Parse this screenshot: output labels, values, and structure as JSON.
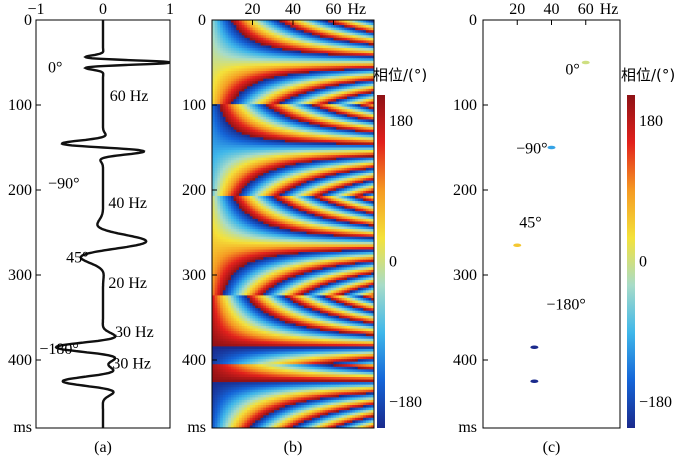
{
  "chart_data": [
    {
      "id": "a",
      "type": "line",
      "title": "",
      "panel_label": "(a)",
      "xlabel": "",
      "ylabel": "ms",
      "xlim": [
        -1,
        1
      ],
      "ylim": [
        480,
        0
      ],
      "x_ticks": [
        "-1",
        "0",
        "1"
      ],
      "y_ticks": [
        "0",
        "100",
        "200",
        "300",
        "400"
      ],
      "y_unit": "ms",
      "wavelets": [
        {
          "center_ms": 50,
          "freq_hz": 60,
          "phase_deg": 0,
          "amp": 1.0
        },
        {
          "center_ms": 150,
          "freq_hz": 40,
          "phase_deg": -90,
          "amp": 0.85
        },
        {
          "center_ms": 265,
          "freq_hz": 20,
          "phase_deg": 45,
          "amp": 0.7
        },
        {
          "center_ms": 385,
          "freq_hz": 30,
          "phase_deg": -180,
          "amp": 0.7
        },
        {
          "center_ms": 425,
          "freq_hz": 30,
          "phase_deg": -180,
          "amp": 0.6
        }
      ],
      "annotations": [
        {
          "text": "0°",
          "t": 62,
          "x": -0.82
        },
        {
          "text": "60 Hz",
          "t": 95,
          "x": 0.1
        },
        {
          "text": "−90°",
          "t": 198,
          "x": -0.82
        },
        {
          "text": "40 Hz",
          "t": 221,
          "x": 0.08
        },
        {
          "text": "45°",
          "t": 285,
          "x": -0.55
        },
        {
          "text": "20 Hz",
          "t": 315,
          "x": 0.08
        },
        {
          "text": "30 Hz",
          "t": 373,
          "x": 0.18
        },
        {
          "text": "−180°",
          "t": 393,
          "x": -0.95
        },
        {
          "text": "30 Hz",
          "t": 410,
          "x": 0.14
        }
      ]
    },
    {
      "id": "b",
      "type": "heatmap",
      "title": "",
      "panel_label": "(b)",
      "x_unit": "Hz",
      "y_unit": "ms",
      "xlim": [
        0,
        80
      ],
      "ylim": [
        480,
        0
      ],
      "x_ticks": [
        "20",
        "40",
        "60"
      ],
      "y_ticks": [
        "0",
        "100",
        "200",
        "300",
        "400"
      ],
      "value_label": "相位/(°)",
      "value_range": [
        -180,
        180
      ],
      "colorbar_ticks": [
        "180",
        "0",
        "−180"
      ]
    },
    {
      "id": "c",
      "type": "scatter",
      "title": "",
      "panel_label": "(c)",
      "x_unit": "Hz",
      "y_unit": "ms",
      "xlim": [
        0,
        80
      ],
      "ylim": [
        480,
        0
      ],
      "x_ticks": [
        "20",
        "40",
        "60"
      ],
      "y_ticks": [
        "0",
        "100",
        "200",
        "300",
        "400"
      ],
      "value_label": "相位/(°)",
      "value_range": [
        -180,
        180
      ],
      "colorbar_ticks": [
        "180",
        "0",
        "−180"
      ],
      "points": [
        {
          "freq_hz": 60,
          "t_ms": 50,
          "phase_deg": 0,
          "label": "0°"
        },
        {
          "freq_hz": 40,
          "t_ms": 150,
          "phase_deg": -90,
          "label": "−90°"
        },
        {
          "freq_hz": 20,
          "t_ms": 265,
          "phase_deg": 45,
          "label": "45°"
        },
        {
          "freq_hz": 30,
          "t_ms": 385,
          "phase_deg": -180,
          "label": ""
        },
        {
          "freq_hz": 30,
          "t_ms": 425,
          "phase_deg": -180,
          "label": "−180°"
        }
      ]
    }
  ],
  "colors": {
    "trace": "#111111",
    "colormap": [
      "#1a2a8c",
      "#1565d8",
      "#3fb7ea",
      "#a8dcc8",
      "#f4e23a",
      "#f59a23",
      "#e2211c",
      "#8e1216"
    ]
  }
}
